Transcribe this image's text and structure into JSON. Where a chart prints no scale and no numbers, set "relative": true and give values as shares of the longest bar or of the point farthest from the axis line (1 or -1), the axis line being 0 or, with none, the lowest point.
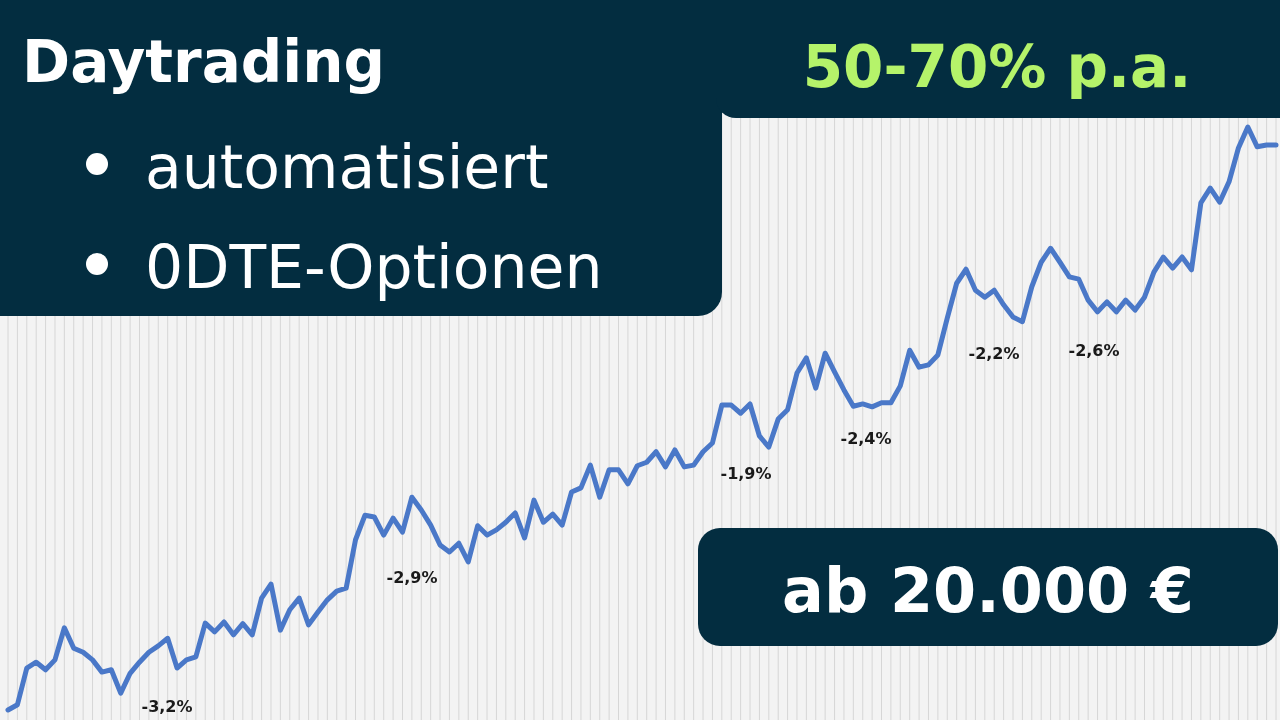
{
  "chart_data": {
    "type": "line",
    "relative": true,
    "title": "Daytrading",
    "subtitle": "50-70% p.a.",
    "annotations": [
      "automatisiert",
      "0DTE-Optionen",
      "ab 20.000 €",
      "-3,2%",
      "-2,9%",
      "-1,9%",
      "-2,4%",
      "-2,2%",
      "-2,6%"
    ],
    "categories": [
      null,
      null,
      null,
      null,
      null,
      null,
      null,
      null,
      null,
      null,
      null,
      null,
      null,
      null,
      null,
      null,
      null,
      null,
      null,
      null,
      null,
      null,
      null,
      null,
      null,
      null,
      null,
      null,
      null,
      null,
      null,
      null,
      null,
      null,
      null,
      null,
      null,
      null,
      null,
      null,
      null,
      null,
      null,
      null,
      null,
      null,
      null,
      null,
      null,
      null,
      null,
      null,
      null,
      null,
      null,
      null,
      null,
      null,
      null,
      null,
      null,
      null,
      null,
      null,
      null,
      null,
      null,
      null,
      null,
      null,
      null,
      null,
      null,
      null,
      null,
      null,
      null,
      null,
      null,
      null,
      null,
      null,
      null,
      null,
      null,
      null,
      null,
      null,
      null,
      null,
      null,
      null,
      null,
      null,
      null,
      null,
      null,
      null,
      null,
      null,
      null,
      null,
      null,
      null,
      null,
      null,
      null,
      null,
      null,
      null,
      null,
      null,
      null,
      null,
      null,
      null,
      null,
      null,
      null,
      null,
      null,
      null,
      null,
      null,
      null,
      null,
      null,
      null,
      null,
      null,
      null,
      null,
      null,
      null,
      null,
      null
    ],
    "series": [
      {
        "color": "#4a78c8",
        "values": [
          0,
          0.009,
          0.072,
          0.082,
          0.069,
          0.086,
          0.141,
          0.106,
          0.099,
          0.086,
          0.065,
          0.069,
          0.029,
          0.063,
          0.082,
          0.099,
          0.11,
          0.123,
          0.072,
          0.086,
          0.091,
          0.149,
          0.134,
          0.151,
          0.129,
          0.148,
          0.129,
          0.192,
          0.216,
          0.137,
          0.172,
          0.192,
          0.146,
          0.168,
          0.189,
          0.204,
          0.209,
          0.292,
          0.334,
          0.331,
          0.3,
          0.329,
          0.305,
          0.365,
          0.343,
          0.317,
          0.283,
          0.271,
          0.286,
          0.254,
          0.316,
          0.3,
          0.309,
          0.322,
          0.338,
          0.295,
          0.36,
          0.322,
          0.336,
          0.317,
          0.374,
          0.381,
          0.42,
          0.365,
          0.412,
          0.412,
          0.388,
          0.419,
          0.425,
          0.443,
          0.417,
          0.446,
          0.417,
          0.42,
          0.443,
          0.458,
          0.523,
          0.523,
          0.509,
          0.525,
          0.47,
          0.451,
          0.499,
          0.515,
          0.578,
          0.604,
          0.552,
          0.612,
          0.58,
          0.549,
          0.521,
          0.525,
          0.52,
          0.527,
          0.527,
          0.556,
          0.617,
          0.588,
          0.592,
          0.609,
          0.672,
          0.732,
          0.756,
          0.72,
          0.708,
          0.72,
          0.695,
          0.674,
          0.666,
          0.726,
          0.768,
          0.792,
          0.768,
          0.743,
          0.739,
          0.703,
          0.683,
          0.7,
          0.683,
          0.703,
          0.686,
          0.708,
          0.751,
          0.777,
          0.758,
          0.777,
          0.755,
          0.87,
          0.895,
          0.871,
          0.906,
          0.964,
          1,
          0.966,
          0.969,
          0.969
        ]
      }
    ],
    "grid": "x",
    "marker": "none",
    "line_style": "solid"
  }
}
